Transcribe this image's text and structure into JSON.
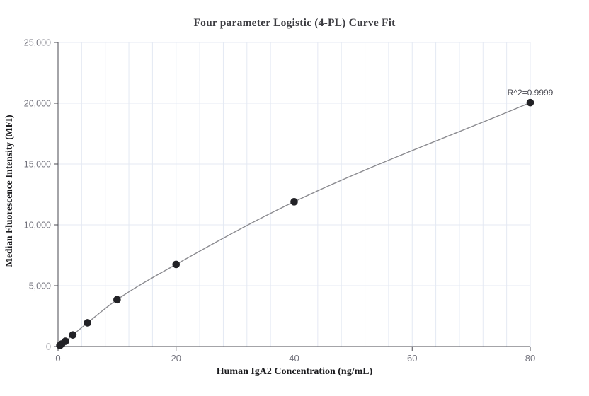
{
  "chart_data": {
    "type": "scatter",
    "title": "Four parameter Logistic (4-PL) Curve Fit",
    "xlabel": "Human IgA2 Concentration (ng/mL)",
    "ylabel": "Median Fluorescence Intensity (MFI)",
    "x": [
      0.3125,
      0.625,
      1.25,
      2.5,
      5,
      10,
      20,
      40,
      80
    ],
    "y": [
      90,
      210,
      430,
      950,
      1950,
      3850,
      6750,
      11900,
      20050
    ],
    "fit": {
      "type": "4PL",
      "annotation": "R^2=0.9999",
      "curve_start": [
        0,
        0
      ]
    },
    "xlim": [
      0,
      80
    ],
    "ylim": [
      0,
      25000
    ],
    "x_ticks": {
      "values": [
        0,
        20,
        40,
        60,
        80
      ],
      "labels": [
        "0",
        "20",
        "40",
        "60",
        "80"
      ]
    },
    "y_ticks": {
      "values": [
        0,
        5000,
        10000,
        15000,
        20000,
        25000
      ],
      "labels": [
        "0",
        "5,000",
        "10,000",
        "15,000",
        "20,000",
        "25,000"
      ]
    },
    "x_minor_grid_step": 4,
    "grid": "on",
    "legend": "none",
    "colors": {
      "background": "#ffffff",
      "grid": "#e4e9f3",
      "axis": "#4a4a52",
      "tick_label": "#73737d",
      "title": "#3d3d42",
      "axis_label": "#1b1b1e",
      "point": "#222226",
      "curve": "#8b8b90",
      "annotation": "#4c4c54"
    }
  }
}
